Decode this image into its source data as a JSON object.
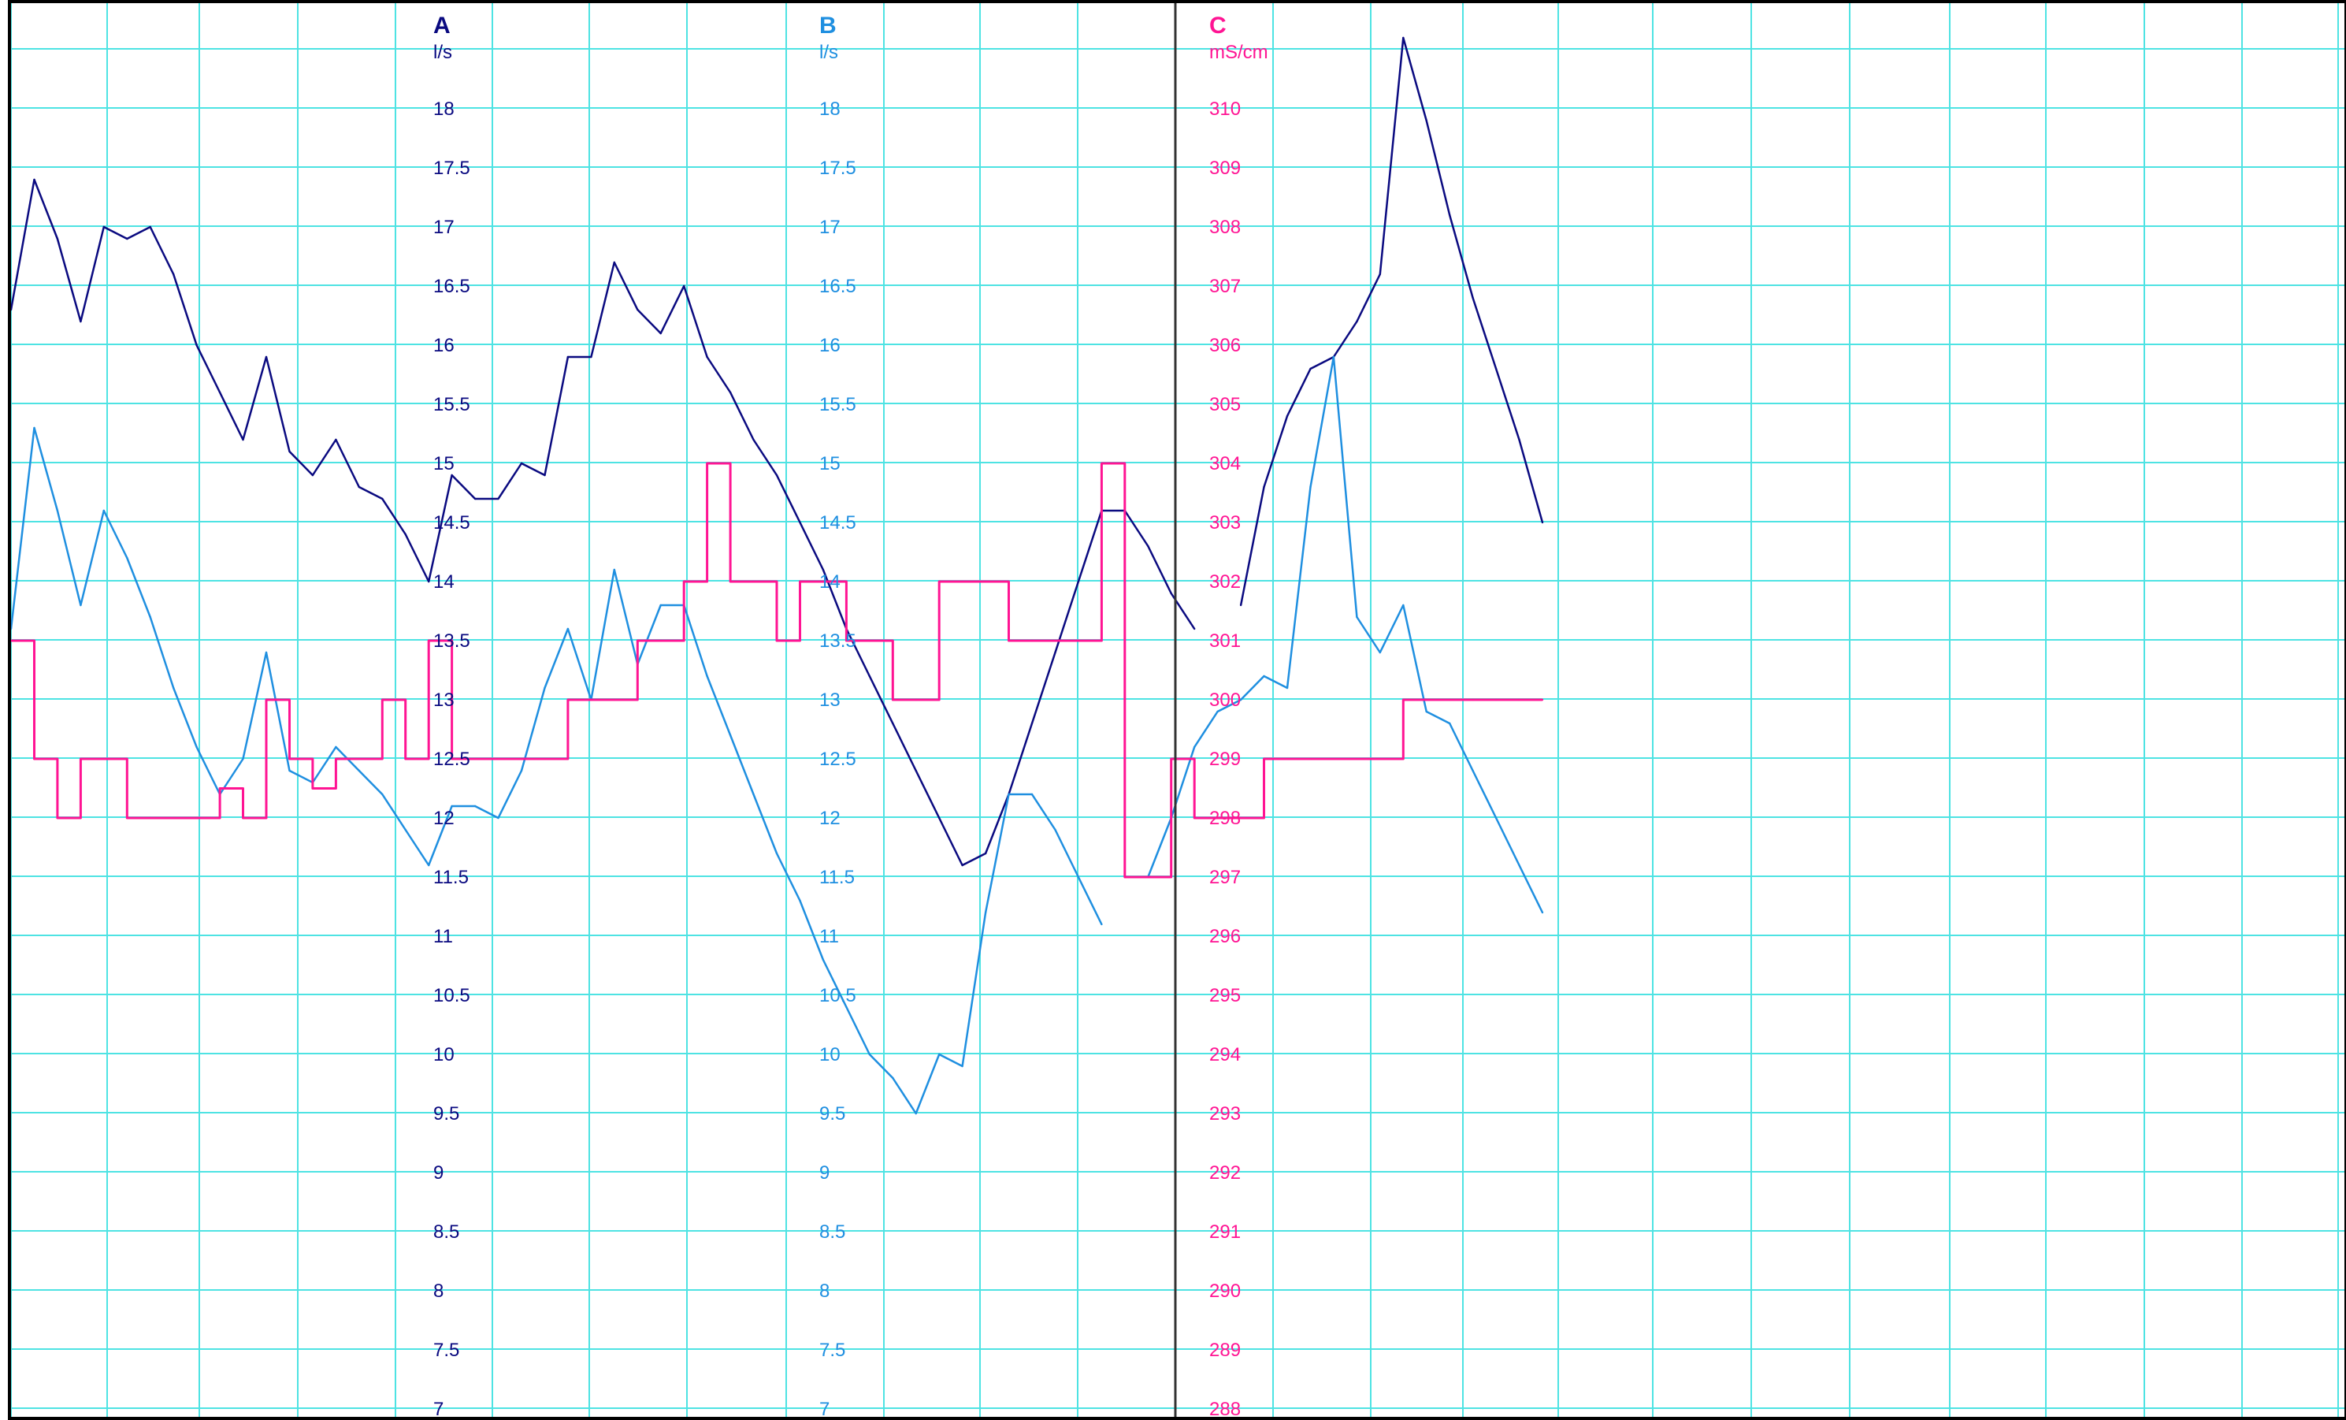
{
  "colors": {
    "grid": "#4ee3e3",
    "frame": "#000000",
    "cursor": "#333333",
    "axis_a": "#0a0a80",
    "axis_b": "#1f8fe0",
    "axis_c": "#ff1493"
  },
  "chart_data": {
    "type": "line",
    "grid": true,
    "legend": "none",
    "x": [
      0,
      0.01,
      0.02,
      0.03,
      0.04,
      0.05,
      0.06,
      0.07,
      0.08,
      0.09,
      0.1,
      0.11,
      0.12,
      0.13,
      0.14,
      0.15,
      0.16,
      0.17,
      0.18,
      0.19,
      0.2,
      0.21,
      0.22,
      0.23,
      0.24,
      0.25,
      0.26,
      0.27,
      0.28,
      0.29,
      0.3,
      0.31,
      0.32,
      0.33,
      0.34,
      0.35,
      0.36,
      0.37,
      0.38,
      0.39,
      0.4,
      0.41,
      0.42,
      0.43,
      0.44,
      0.45,
      0.46,
      0.47,
      0.48,
      0.49,
      0.5,
      0.51,
      0.52,
      0.53,
      0.54,
      0.55,
      0.56,
      0.57,
      0.58,
      0.59,
      0.6,
      0.61,
      0.62,
      0.63,
      0.64,
      0.65,
      0.66
    ],
    "axes": [
      {
        "id": "A",
        "title": "A",
        "unit": "l/s",
        "ylim": [
          7,
          18.5
        ],
        "ticks": [
          "18",
          "17.5",
          "17",
          "16.5",
          "16",
          "15.5",
          "15",
          "14.5",
          "14",
          "13.5",
          "13",
          "12.5",
          "12",
          "11.5",
          "11",
          "10.5",
          "10",
          "9.5",
          "9",
          "8.5",
          "8",
          "7.5",
          "7"
        ]
      },
      {
        "id": "B",
        "title": "B",
        "unit": "l/s",
        "ylim": [
          7,
          18.5
        ],
        "ticks": [
          "18",
          "17.5",
          "17",
          "16.5",
          "16",
          "15.5",
          "15",
          "14.5",
          "14",
          "13.5",
          "13",
          "12.5",
          "12",
          "11.5",
          "11",
          "10.5",
          "10",
          "9.5",
          "9",
          "8.5",
          "8",
          "7.5",
          "7"
        ]
      },
      {
        "id": "C",
        "title": "C",
        "unit": "mS/cm",
        "ylim": [
          288,
          311
        ],
        "ticks": [
          "310",
          "309",
          "308",
          "307",
          "306",
          "305",
          "304",
          "303",
          "302",
          "301",
          "300",
          "299",
          "298",
          "297",
          "296",
          "295",
          "294",
          "293",
          "292",
          "291",
          "290",
          "289",
          "288"
        ]
      }
    ],
    "series": [
      {
        "axis": "A",
        "color": "#0a0a80",
        "values": [
          16.3,
          17.4,
          16.9,
          16.2,
          17.0,
          16.9,
          17.0,
          16.6,
          16.0,
          15.6,
          15.2,
          15.9,
          15.1,
          14.9,
          15.2,
          14.8,
          14.7,
          14.4,
          14.0,
          14.9,
          14.7,
          14.7,
          15.0,
          14.9,
          15.9,
          15.9,
          16.7,
          16.3,
          16.1,
          16.5,
          15.9,
          15.6,
          15.2,
          14.9,
          14.5,
          14.1,
          13.6,
          13.2,
          12.8,
          12.4,
          12.0,
          11.6,
          11.7,
          12.2,
          12.8,
          13.4,
          14.0,
          14.6,
          14.6,
          14.3,
          13.9,
          13.6,
          null,
          13.8,
          14.8,
          15.4,
          15.8,
          15.9,
          16.2,
          16.6,
          18.6,
          17.9,
          17.1,
          16.4,
          15.8,
          15.2,
          14.5
        ]
      },
      {
        "axis": "B",
        "color": "#1f8fe0",
        "values": [
          13.6,
          15.3,
          14.6,
          13.8,
          14.6,
          14.2,
          13.7,
          13.1,
          12.6,
          12.2,
          12.5,
          13.4,
          12.4,
          12.3,
          12.6,
          12.4,
          12.2,
          11.9,
          11.6,
          12.1,
          12.1,
          12.0,
          12.4,
          13.1,
          13.6,
          13.0,
          14.1,
          13.3,
          13.8,
          13.8,
          13.2,
          12.7,
          12.2,
          11.7,
          11.3,
          10.8,
          10.4,
          10.0,
          9.8,
          9.5,
          10.0,
          9.9,
          11.2,
          12.2,
          12.2,
          11.9,
          11.5,
          11.1,
          null,
          11.5,
          12.0,
          12.6,
          12.9,
          13.0,
          13.2,
          13.1,
          14.8,
          15.9,
          13.7,
          13.4,
          13.8,
          12.9,
          12.8,
          12.4,
          12.0,
          11.6,
          11.2
        ]
      },
      {
        "axis": "C",
        "color": "#ff1493",
        "values": [
          301.0,
          299.0,
          298.0,
          299.0,
          299.0,
          298.0,
          298.0,
          298.0,
          298.0,
          298.5,
          298.0,
          300.0,
          299.0,
          298.5,
          299.0,
          299.0,
          300.0,
          299.0,
          301.0,
          299.0,
          299.0,
          299.0,
          299.0,
          299.0,
          300.0,
          300.0,
          300.0,
          301.0,
          301.0,
          302.0,
          304.0,
          302.0,
          302.0,
          301.0,
          302.0,
          302.0,
          301.0,
          301.0,
          300.0,
          300.0,
          302.0,
          302.0,
          302.0,
          301.0,
          301.0,
          301.0,
          301.0,
          304.0,
          297.0,
          297.0,
          299.0,
          298.0,
          298.0,
          298.0,
          299.0,
          299.0,
          299.0,
          299.0,
          299.0,
          299.0,
          300.0,
          300.0,
          300.0,
          300.0,
          300.0,
          300.0,
          300.0
        ]
      }
    ]
  }
}
